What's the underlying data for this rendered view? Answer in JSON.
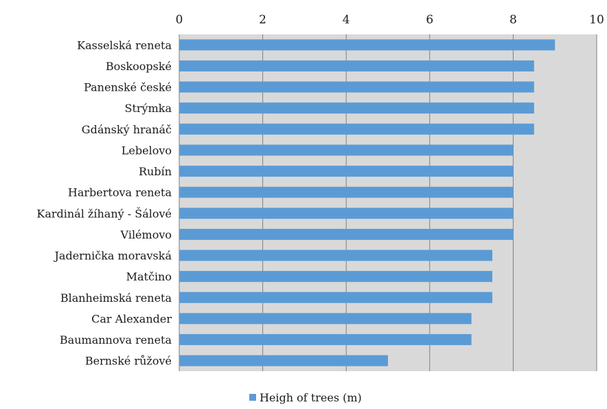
{
  "chart_data": {
    "type": "bar",
    "orientation": "horizontal",
    "x_axis_position": "top",
    "grid": true,
    "legend_position": "bottom",
    "xlim": [
      0,
      10
    ],
    "xticks": [
      0,
      2,
      4,
      6,
      8,
      10
    ],
    "categories": [
      "Kasselská reneta",
      "Boskoopské",
      "Panenské české",
      "Strýmka",
      "Gdánský hranáč",
      "Lebelovo",
      "Rubín",
      "Harbertova reneta",
      "Kardinál žíhaný - Šálové",
      "Vilémovo",
      "Jadernička moravská",
      "Matčino",
      "Blanheimská reneta",
      "Car Alexander",
      "Baumannova reneta",
      "Bernské růžové"
    ],
    "series": [
      {
        "name": "Heigh of trees (m)",
        "color": "#5b9bd5",
        "values": [
          9,
          8.5,
          8.5,
          8.5,
          8.5,
          8,
          8,
          8,
          8,
          8,
          7.5,
          7.5,
          7.5,
          7,
          7,
          5
        ]
      }
    ],
    "colors": {
      "plot_background": "#d9d9d9",
      "gridline": "#7f7f7f",
      "bar": "#5b9bd5"
    }
  }
}
